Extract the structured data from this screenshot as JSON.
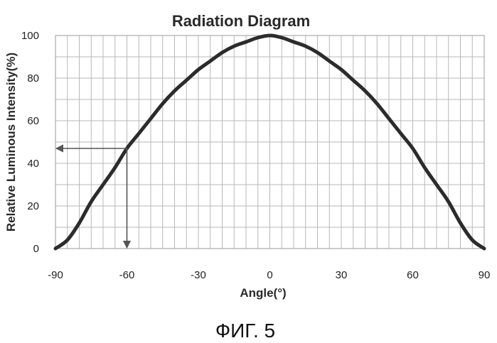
{
  "chart_data": {
    "type": "line",
    "title": "Radiation Diagram",
    "xlabel": "Angle(°)",
    "ylabel": "Relative Luminous Intensity(%)",
    "xlim": [
      -90,
      90
    ],
    "ylim": [
      0,
      100
    ],
    "x_ticks": [
      -90,
      -60,
      -30,
      0,
      30,
      60,
      90
    ],
    "y_ticks": [
      0,
      20,
      40,
      60,
      80,
      100
    ],
    "x_tick_labels": [
      "-90",
      "-60",
      "-30",
      "0",
      "30",
      "60",
      "90"
    ],
    "y_tick_labels": [
      "0",
      "20",
      "40",
      "60",
      "80",
      "100"
    ],
    "grid": true,
    "legend": "none",
    "series": [
      {
        "x": [
          -90,
          -85,
          -80,
          -75,
          -70,
          -65,
          -60,
          -55,
          -50,
          -45,
          -40,
          -35,
          -30,
          -25,
          -20,
          -15,
          -10,
          -5,
          0,
          5,
          10,
          15,
          20,
          25,
          30,
          35,
          40,
          45,
          50,
          55,
          60,
          65,
          70,
          75,
          80,
          85,
          90
        ],
        "y": [
          0,
          4,
          12,
          22,
          30,
          38,
          47,
          54,
          61,
          68,
          74,
          79,
          84,
          88,
          92,
          95,
          97,
          99,
          100,
          99,
          97,
          95,
          92,
          88,
          84,
          79,
          74,
          68,
          61,
          54,
          47,
          38,
          30,
          22,
          12,
          4,
          0
        ]
      }
    ],
    "annotation": {
      "type": "arrows",
      "at_x": -60,
      "at_y": 47
    },
    "colors": {
      "line": "#2b2b2b",
      "grid": "#b8b8b8",
      "arrow": "#555555"
    }
  },
  "caption": "ФИГ. 5"
}
